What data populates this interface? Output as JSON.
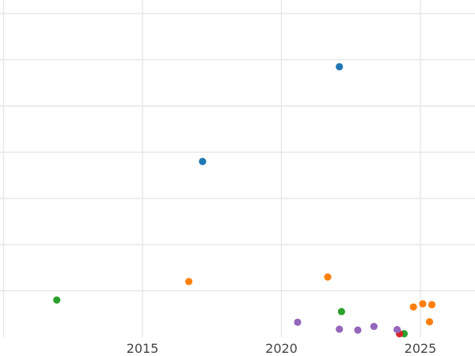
{
  "chart_data": {
    "type": "scatter",
    "title": "",
    "xlabel": "",
    "ylabel": "",
    "x_axis_type": "date",
    "xlim": [
      "2009-12-01",
      "2026-12-01"
    ],
    "ylim": [
      0,
      7.3
    ],
    "x_ticks": [
      {
        "value": "2015-01-01",
        "label": "2015"
      },
      {
        "value": "2020-01-01",
        "label": "2020"
      },
      {
        "value": "2025-01-01",
        "label": "2025"
      }
    ],
    "x_minor_ticks": [
      "2010-01-01"
    ],
    "y_gridlines": [
      1,
      2,
      3,
      4,
      5,
      6,
      7
    ],
    "y_tick_labels_visible": false,
    "grid": true,
    "legend": "none",
    "series": [
      {
        "color": "#1f77b4",
        "points": [
          {
            "x": "2017-03-01",
            "y": 3.8
          },
          {
            "x": "2022-02-01",
            "y": 5.85
          }
        ]
      },
      {
        "color": "#ff7f0e",
        "points": [
          {
            "x": "2016-09-01",
            "y": 1.2
          },
          {
            "x": "2021-09-01",
            "y": 1.3
          },
          {
            "x": "2024-10-01",
            "y": 0.65
          },
          {
            "x": "2025-02-01",
            "y": 0.72
          },
          {
            "x": "2025-06-01",
            "y": 0.7
          },
          {
            "x": "2025-05-01",
            "y": 0.33
          }
        ]
      },
      {
        "color": "#2ca02c",
        "points": [
          {
            "x": "2011-12-01",
            "y": 0.8
          },
          {
            "x": "2022-03-01",
            "y": 0.55
          },
          {
            "x": "2024-06-01",
            "y": 0.07
          }
        ]
      },
      {
        "color": "#d62728",
        "points": [
          {
            "x": "2024-04-01",
            "y": 0.07
          }
        ]
      },
      {
        "color": "#9467bd",
        "points": [
          {
            "x": "2020-08-01",
            "y": 0.32
          },
          {
            "x": "2022-02-01",
            "y": 0.17
          },
          {
            "x": "2022-10-01",
            "y": 0.15
          },
          {
            "x": "2023-05-01",
            "y": 0.23
          },
          {
            "x": "2024-03-01",
            "y": 0.16
          }
        ]
      }
    ]
  }
}
